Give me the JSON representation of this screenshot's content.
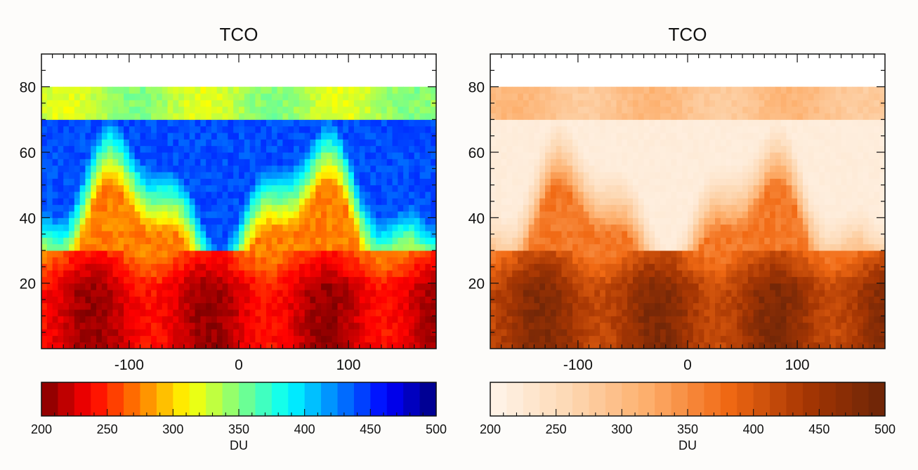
{
  "chart_data": [
    {
      "type": "heatmap",
      "title": "TCO",
      "colormap": "jet",
      "colors": [
        "#7f0000",
        "#ff0000",
        "#ff8000",
        "#ffff00",
        "#80ff80",
        "#00ffff",
        "#0080ff",
        "#0000ff",
        "#00007f"
      ],
      "xlim": [
        -180,
        180
      ],
      "ylim": [
        0,
        90
      ],
      "data_ylim": [
        0,
        80
      ],
      "x_ticks": [
        "-100",
        "0",
        "100"
      ],
      "x_tick_values": [
        -100,
        0,
        100
      ],
      "y_ticks": [
        "20",
        "40",
        "60",
        "80"
      ],
      "y_tick_values": [
        20,
        40,
        60,
        80
      ],
      "colorbar": {
        "label": "DU",
        "range": [
          200,
          500
        ],
        "ticks": [
          "200",
          "250",
          "300",
          "350",
          "400",
          "450",
          "500"
        ],
        "tick_values": [
          200,
          250,
          300,
          350,
          400,
          450,
          500
        ]
      }
    },
    {
      "type": "heatmap",
      "title": "TCO",
      "colormap": "oranges",
      "colors": [
        "#fff5eb",
        "#fdd8b3",
        "#fdae6b",
        "#f16913",
        "#a63603",
        "#6b2408"
      ],
      "xlim": [
        -180,
        180
      ],
      "ylim": [
        0,
        90
      ],
      "data_ylim": [
        0,
        80
      ],
      "x_ticks": [
        "-100",
        "0",
        "100"
      ],
      "x_tick_values": [
        -100,
        0,
        100
      ],
      "y_ticks": [
        "20",
        "40",
        "60",
        "80"
      ],
      "y_tick_values": [
        20,
        40,
        60,
        80
      ],
      "colorbar": {
        "label": "DU",
        "range": [
          200,
          500
        ],
        "ticks": [
          "200",
          "250",
          "300",
          "350",
          "400",
          "450",
          "500"
        ],
        "tick_values": [
          200,
          250,
          300,
          350,
          400,
          450,
          500
        ]
      }
    }
  ]
}
